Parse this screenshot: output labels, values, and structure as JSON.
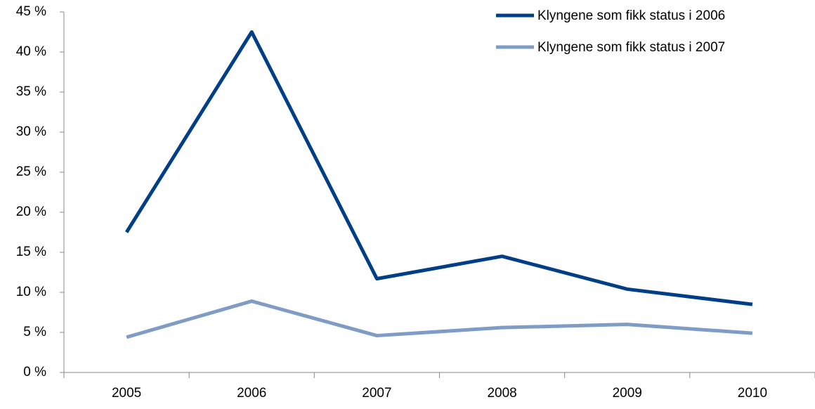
{
  "chart_data": {
    "type": "line",
    "categories": [
      "2005",
      "2006",
      "2007",
      "2008",
      "2009",
      "2010"
    ],
    "series": [
      {
        "name": "Klyngene som fikk status i 2006",
        "color": "#003f87",
        "values": [
          17.5,
          42.5,
          11.7,
          14.5,
          10.4,
          8.5
        ]
      },
      {
        "name": "Klyngene som fikk status i 2007",
        "color": "#7f9cc6",
        "values": [
          4.4,
          8.9,
          4.6,
          5.6,
          6.0,
          4.9
        ]
      }
    ],
    "ylim": [
      0,
      45
    ],
    "yticks": [
      {
        "value": 0,
        "label": "0 %"
      },
      {
        "value": 5,
        "label": "5 %"
      },
      {
        "value": 10,
        "label": "10 %"
      },
      {
        "value": 15,
        "label": "15 %"
      },
      {
        "value": 20,
        "label": "20 %"
      },
      {
        "value": 25,
        "label": "25 %"
      },
      {
        "value": 30,
        "label": "30 %"
      },
      {
        "value": 35,
        "label": "35 %"
      },
      {
        "value": 40,
        "label": "40 %"
      },
      {
        "value": 45,
        "label": "45 %"
      }
    ],
    "legend": "upper right"
  }
}
